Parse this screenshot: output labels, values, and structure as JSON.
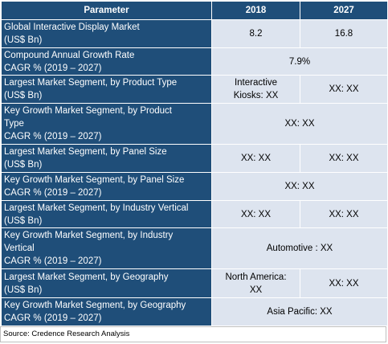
{
  "header": {
    "parameter": "Parameter",
    "year1": "2018",
    "year2": "2027"
  },
  "rows": [
    {
      "lines": [
        "Global Interactive Display Market",
        "(US$ Bn)"
      ],
      "v2018": "8.2",
      "v2027": "16.8"
    },
    {
      "lines": [
        "Compound Annual Growth Rate",
        "CAGR % (2019 – 2027)"
      ],
      "merged": "7.9%"
    },
    {
      "lines": [
        "Largest Market Segment, by Product Type",
        "(US$ Bn)"
      ],
      "v2018_lines": [
        "Interactive",
        "Kiosks: XX"
      ],
      "v2027": "XX: XX"
    },
    {
      "lines": [
        "Key Growth Market Segment, by Product",
        "Type",
        "CAGR % (2019 – 2027)"
      ],
      "merged": "XX: XX"
    },
    {
      "lines": [
        "Largest Market Segment, by Panel Size",
        "(US$ Bn)"
      ],
      "v2018": "XX: XX",
      "v2027": "XX: XX"
    },
    {
      "lines": [
        "Key Growth Market Segment, by Panel Size",
        "CAGR % (2019 – 2027)"
      ],
      "merged": "XX: XX"
    },
    {
      "lines": [
        "Largest Market Segment, by Industry Vertical",
        "(US$ Bn)"
      ],
      "v2018": "XX: XX",
      "v2027": "XX: XX"
    },
    {
      "lines": [
        "Key Growth Market Segment, by Industry",
        "Vertical",
        "CAGR % (2019 – 2027)"
      ],
      "merged": "Automotive : XX"
    },
    {
      "lines": [
        "Largest Market Segment, by Geography",
        "(US$ Bn)"
      ],
      "v2018_lines": [
        "North America:",
        "XX"
      ],
      "v2027": "XX: XX"
    },
    {
      "lines": [
        "Key Growth Market Segment, by Geography",
        "CAGR % (2019 – 2027)"
      ],
      "merged": "Asia Pacific: XX"
    }
  ],
  "source": "Source: Credence Research Analysis",
  "colors": {
    "header_bg": "#1f4e79",
    "value_bg": "#dde4ef"
  }
}
